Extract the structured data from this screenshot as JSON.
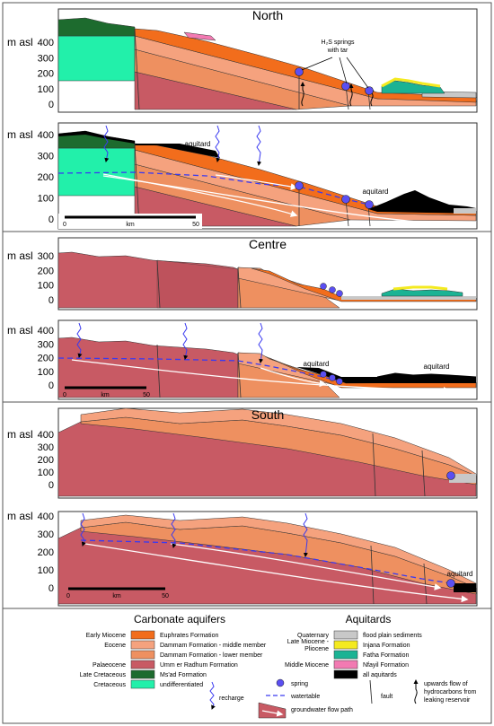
{
  "regions": {
    "north": "North",
    "centre": "Centre",
    "south": "South"
  },
  "axis": {
    "unit_label": "m asl",
    "ticks": [
      "400",
      "300",
      "200",
      "100",
      "0"
    ]
  },
  "annotations": {
    "springs_note": [
      "H₂S springs",
      "with tar"
    ],
    "aquitard": "aquitard"
  },
  "scalebars": {
    "north": {
      "start": "0",
      "unit": "km",
      "end": "50"
    },
    "centre": {
      "start": "0",
      "unit": "km",
      "end": "50"
    },
    "south": {
      "start": "0",
      "unit": "km",
      "end": "50"
    }
  },
  "legend": {
    "carbonate_title": "Carbonate aquifers",
    "aquitard_title": "Aquitards",
    "carbonate_items": [
      {
        "age": "Early Miocene",
        "label": "Euphrates Formation",
        "color": "#f26d1c"
      },
      {
        "age": "Eocene",
        "label": "Dammam Formation - middle member",
        "color": "#f5a27e"
      },
      {
        "age": "",
        "label": "Dammam Formation - lower member",
        "color": "#ee9060"
      },
      {
        "age": "Palaeocene",
        "label": "Umm er Radhum Formation",
        "color": "#c85a64"
      },
      {
        "age": "Late Cretaceous",
        "label": "Ms'ad Formation",
        "color": "#1d6b2e"
      },
      {
        "age": "Cretaceous",
        "label": "undifferentiated",
        "color": "#22f0aa"
      }
    ],
    "aquitard_items": [
      {
        "age": "Quaternary",
        "label": "flood plain sediments",
        "color": "#c8c8c8"
      },
      {
        "age": "Late Miocene - Pliocene",
        "label": "Injana Formation",
        "color": "#f4ea20"
      },
      {
        "age": "",
        "label": "Fatha Formation",
        "color": "#1bb394"
      },
      {
        "age": "Middle Miocene",
        "label": "Nfayil Formation",
        "color": "#f27ab2"
      },
      {
        "age": "",
        "label": "all aquitards",
        "color": "#000000"
      }
    ],
    "symbols": {
      "recharge": "recharge",
      "spring": "spring",
      "watertable": "watertable",
      "flowpath": "groundwater flow path",
      "fault": "fault",
      "hydrocarbon": [
        "upwards flow of",
        "hydrocarbons from",
        "leaking reservoir"
      ]
    }
  }
}
